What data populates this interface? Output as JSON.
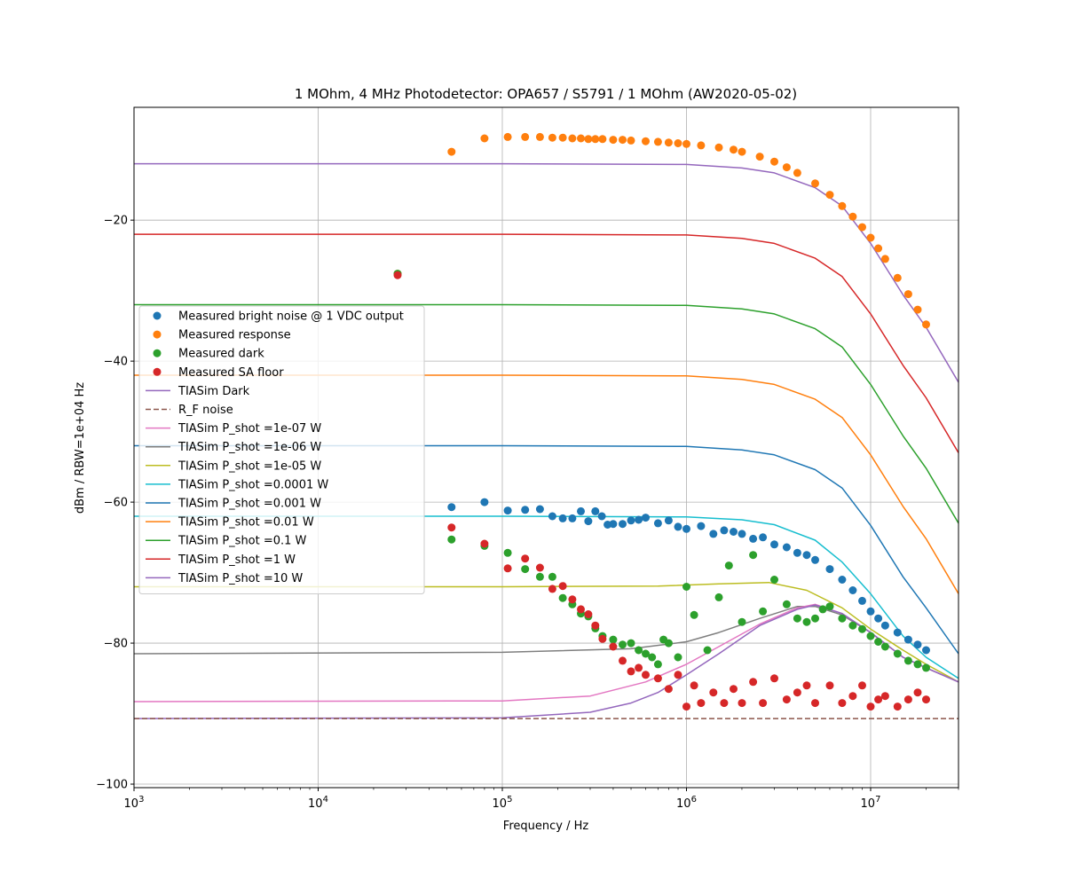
{
  "chart_data": {
    "type": "line",
    "title": "1 MOhm, 4 MHz Photodetector: OPA657 / S5791 / 1 MOhm (AW2020-05-02)",
    "xlabel": "Frequency / Hz",
    "ylabel": "dBm / RBW=1e+04 Hz",
    "x_scale": "log",
    "xlim": [
      1000,
      30000000
    ],
    "ylim": [
      -100.5,
      -4
    ],
    "grid": true,
    "legend_location": "center-left",
    "x_ticks": [
      {
        "value": 1000,
        "base": "10",
        "exp": "3"
      },
      {
        "value": 10000,
        "base": "10",
        "exp": "4"
      },
      {
        "value": 100000,
        "base": "10",
        "exp": "5"
      },
      {
        "value": 1000000,
        "base": "10",
        "exp": "6"
      },
      {
        "value": 10000000,
        "base": "10",
        "exp": "7"
      }
    ],
    "y_ticks": [
      {
        "value": -20,
        "label": "−20"
      },
      {
        "value": -40,
        "label": "−40"
      },
      {
        "value": -60,
        "label": "−60"
      },
      {
        "value": -80,
        "label": "−80"
      },
      {
        "value": -100,
        "label": "−100"
      }
    ],
    "legend": [
      {
        "label": "Measured bright noise @ 1 VDC output",
        "marker": "dot",
        "color": "#1f77b4"
      },
      {
        "label": "Measured response",
        "marker": "dot",
        "color": "#ff7f0e"
      },
      {
        "label": "Measured dark",
        "marker": "dot",
        "color": "#2ca02c"
      },
      {
        "label": "Measured SA floor",
        "marker": "dot",
        "color": "#d62728"
      },
      {
        "label": "TIASim Dark",
        "marker": "line",
        "color": "#9467bd"
      },
      {
        "label": "R_F noise",
        "marker": "dash",
        "color": "#8c564b"
      },
      {
        "label": "TIASim P_shot =1e-07 W",
        "marker": "line",
        "color": "#e377c2"
      },
      {
        "label": "TIASim P_shot =1e-06 W",
        "marker": "line",
        "color": "#7f7f7f"
      },
      {
        "label": "TIASim P_shot =1e-05 W",
        "marker": "line",
        "color": "#bcbd22"
      },
      {
        "label": "TIASim P_shot =0.0001 W",
        "marker": "line",
        "color": "#17becf"
      },
      {
        "label": "TIASim P_shot =0.001 W",
        "marker": "line",
        "color": "#1f77b4"
      },
      {
        "label": "TIASim P_shot =0.01 W",
        "marker": "line",
        "color": "#ff7f0e"
      },
      {
        "label": "TIASim P_shot =0.1 W",
        "marker": "line",
        "color": "#2ca02c"
      },
      {
        "label": "TIASim P_shot =1 W",
        "marker": "line",
        "color": "#d62728"
      },
      {
        "label": "TIASim P_shot =10 W",
        "marker": "line",
        "color": "#9467bd"
      }
    ],
    "line_series": [
      {
        "name": "TIASim P_shot =10 W",
        "color": "#9467bd",
        "dash": false,
        "x": [
          1000,
          100000,
          1000000,
          2000000,
          3000000,
          5000000,
          7000000,
          10000000,
          15000000,
          20000000,
          30000000
        ],
        "y": [
          -12,
          -12,
          -12.1,
          -12.6,
          -13.3,
          -15.4,
          -18,
          -23.3,
          -30.6,
          -35.2,
          -43
        ]
      },
      {
        "name": "TIASim P_shot =1 W",
        "color": "#d62728",
        "dash": false,
        "x": [
          1000,
          100000,
          1000000,
          2000000,
          3000000,
          5000000,
          7000000,
          10000000,
          15000000,
          20000000,
          30000000
        ],
        "y": [
          -22,
          -22,
          -22.1,
          -22.6,
          -23.3,
          -25.4,
          -28,
          -33.3,
          -40.6,
          -45.2,
          -53
        ]
      },
      {
        "name": "TIASim P_shot =0.1 W",
        "color": "#2ca02c",
        "dash": false,
        "x": [
          1000,
          100000,
          1000000,
          2000000,
          3000000,
          5000000,
          7000000,
          10000000,
          15000000,
          20000000,
          30000000
        ],
        "y": [
          -32,
          -32,
          -32.1,
          -32.6,
          -33.3,
          -35.4,
          -38,
          -43.3,
          -50.6,
          -55.2,
          -63
        ]
      },
      {
        "name": "TIASim P_shot =0.01 W",
        "color": "#ff7f0e",
        "dash": false,
        "x": [
          1000,
          100000,
          1000000,
          2000000,
          3000000,
          5000000,
          7000000,
          10000000,
          15000000,
          20000000,
          30000000
        ],
        "y": [
          -42,
          -42,
          -42.1,
          -42.6,
          -43.3,
          -45.4,
          -48,
          -53.3,
          -60.6,
          -65.2,
          -73
        ]
      },
      {
        "name": "TIASim P_shot =0.001 W",
        "color": "#1f77b4",
        "dash": false,
        "x": [
          1000,
          100000,
          1000000,
          2000000,
          3000000,
          5000000,
          7000000,
          10000000,
          15000000,
          20000000,
          30000000
        ],
        "y": [
          -52,
          -52,
          -52.1,
          -52.6,
          -53.3,
          -55.4,
          -58,
          -63.3,
          -70.6,
          -75,
          -81.5
        ]
      },
      {
        "name": "TIASim P_shot =0.0001 W",
        "color": "#17becf",
        "dash": false,
        "x": [
          1000,
          100000,
          1000000,
          2000000,
          3000000,
          5000000,
          7000000,
          10000000,
          15000000,
          20000000,
          30000000
        ],
        "y": [
          -62,
          -62,
          -62.1,
          -62.5,
          -63.2,
          -65.4,
          -68.5,
          -73,
          -79,
          -82,
          -85
        ]
      },
      {
        "name": "TIASim P_shot =1e-05 W",
        "color": "#bcbd22",
        "dash": false,
        "x": [
          1000,
          100000,
          700000,
          1500000,
          2800000,
          4500000,
          7000000,
          10000000,
          15000000,
          20000000,
          30000000
        ],
        "y": [
          -72,
          -72,
          -71.9,
          -71.6,
          -71.4,
          -72.5,
          -75,
          -78,
          -81,
          -83,
          -85.5
        ]
      },
      {
        "name": "TIASim P_shot =1e-06 W",
        "color": "#7f7f7f",
        "dash": false,
        "x": [
          1000,
          100000,
          500000,
          1000000,
          1500000,
          2500000,
          4000000,
          5000000,
          7000000,
          10000000,
          15000000,
          20000000,
          30000000
        ],
        "y": [
          -81.5,
          -81.3,
          -80.8,
          -79.8,
          -78.5,
          -76.5,
          -74.8,
          -74.8,
          -76,
          -78.5,
          -82,
          -83.5,
          -85.5
        ]
      },
      {
        "name": "TIASim P_shot =1e-07 W",
        "color": "#e377c2",
        "dash": false,
        "x": [
          1000,
          100000,
          300000,
          600000,
          1000000,
          1500000,
          2500000,
          4000000,
          5000000,
          7000000,
          10000000,
          15000000,
          20000000,
          30000000
        ],
        "y": [
          -88.3,
          -88.2,
          -87.5,
          -85.5,
          -83,
          -80.5,
          -77.3,
          -75,
          -74.5,
          -75.8,
          -78.5,
          -82,
          -83.5,
          -85.5
        ]
      },
      {
        "name": "TIASim Dark",
        "color": "#9467bd",
        "dash": false,
        "x": [
          1000,
          100000,
          300000,
          500000,
          700000,
          1000000,
          1500000,
          2500000,
          4000000,
          5000000,
          7000000,
          10000000,
          15000000,
          20000000,
          30000000
        ],
        "y": [
          -90.7,
          -90.6,
          -89.8,
          -88.5,
          -87,
          -84.5,
          -81.5,
          -77.5,
          -75.2,
          -74.6,
          -75.8,
          -78.5,
          -82,
          -83.5,
          -85.5
        ]
      },
      {
        "name": "R_F noise",
        "color": "#8c564b",
        "dash": true,
        "x": [
          1000,
          30000000
        ],
        "y": [
          -90.7,
          -90.7
        ]
      }
    ],
    "scatter_series": [
      {
        "name": "Measured bright noise @ 1 VDC output",
        "color": "#1f77b4",
        "x": [
          53000,
          80000,
          107000,
          133000,
          160000,
          187000,
          213000,
          240000,
          267000,
          293000,
          320000,
          347000,
          373000,
          400000,
          450000,
          500000,
          550000,
          600000,
          700000,
          800000,
          900000,
          1000000,
          1200000,
          1400000,
          1600000,
          1800000,
          2000000,
          2300000,
          2600000,
          3000000,
          3500000,
          4000000,
          4500000,
          5000000,
          6000000,
          7000000,
          8000000,
          9000000,
          10000000,
          11000000,
          12000000,
          14000000,
          16000000,
          18000000,
          20000000
        ],
        "y": [
          -60.7,
          -60,
          -61.2,
          -61.1,
          -61,
          -62,
          -62.3,
          -62.3,
          -61.3,
          -62.7,
          -61.3,
          -62,
          -63.2,
          -63.1,
          -63.1,
          -62.6,
          -62.5,
          -62.2,
          -63,
          -62.6,
          -63.5,
          -63.8,
          -63.4,
          -64.5,
          -64,
          -64.2,
          -64.5,
          -65.2,
          -65,
          -66,
          -66.4,
          -67.2,
          -67.5,
          -68.2,
          -69.5,
          -71,
          -72.5,
          -74,
          -75.5,
          -76.5,
          -77.5,
          -78.5,
          -79.5,
          -80.2,
          -81
        ]
      },
      {
        "name": "Measured response",
        "color": "#ff7f0e",
        "x": [
          27000,
          53000,
          80000,
          107000,
          133000,
          160000,
          187000,
          213000,
          240000,
          267000,
          293000,
          320000,
          350000,
          400000,
          450000,
          500000,
          600000,
          700000,
          800000,
          900000,
          1000000,
          1200000,
          1500000,
          1800000,
          2000000,
          2500000,
          3000000,
          3500000,
          4000000,
          5000000,
          6000000,
          7000000,
          8000000,
          9000000,
          10000000,
          11000000,
          12000000,
          14000000,
          16000000,
          18000000,
          20000000
        ],
        "y": [
          -27.6,
          -10.3,
          -8.4,
          -8.2,
          -8.2,
          -8.2,
          -8.3,
          -8.3,
          -8.4,
          -8.4,
          -8.5,
          -8.5,
          -8.5,
          -8.6,
          -8.6,
          -8.7,
          -8.8,
          -8.9,
          -9,
          -9.1,
          -9.2,
          -9.4,
          -9.7,
          -10,
          -10.3,
          -11,
          -11.7,
          -12.5,
          -13.3,
          -14.8,
          -16.4,
          -18,
          -19.5,
          -21,
          -22.5,
          -24,
          -25.5,
          -28.2,
          -30.5,
          -32.7,
          -34.8
        ]
      },
      {
        "name": "Measured dark",
        "color": "#2ca02c",
        "x": [
          27000,
          53000,
          80000,
          107000,
          133000,
          160000,
          187000,
          213000,
          240000,
          267000,
          293000,
          320000,
          350000,
          400000,
          450000,
          500000,
          550000,
          600000,
          650000,
          700000,
          750000,
          800000,
          900000,
          1000000,
          1100000,
          1300000,
          1500000,
          1700000,
          2000000,
          2300000,
          2600000,
          3000000,
          3500000,
          4000000,
          4500000,
          5000000,
          5500000,
          6000000,
          7000000,
          8000000,
          9000000,
          10000000,
          11000000,
          12000000,
          14000000,
          16000000,
          18000000,
          20000000
        ],
        "y": [
          -27.6,
          -65.3,
          -66.2,
          -67.2,
          -69.5,
          -70.6,
          -70.6,
          -73.6,
          -74.5,
          -75.8,
          -76.2,
          -77.9,
          -79,
          -79.5,
          -80.2,
          -80,
          -81,
          -81.5,
          -82,
          -83,
          -79.5,
          -80,
          -82,
          -72,
          -76,
          -81,
          -73.5,
          -69,
          -77,
          -67.5,
          -75.5,
          -71,
          -74.5,
          -76.5,
          -77,
          -76.5,
          -75.2,
          -74.8,
          -76.5,
          -77.5,
          -78,
          -79,
          -79.8,
          -80.5,
          -81.5,
          -82.5,
          -83,
          -83.5
        ]
      },
      {
        "name": "Measured SA floor",
        "color": "#d62728",
        "x": [
          27000,
          53000,
          80000,
          107000,
          133000,
          160000,
          187000,
          213000,
          240000,
          267000,
          293000,
          320000,
          350000,
          400000,
          450000,
          500000,
          550000,
          600000,
          700000,
          800000,
          900000,
          1000000,
          1100000,
          1200000,
          1400000,
          1600000,
          1800000,
          2000000,
          2300000,
          2600000,
          3000000,
          3500000,
          4000000,
          4500000,
          5000000,
          6000000,
          7000000,
          8000000,
          9000000,
          10000000,
          11000000,
          12000000,
          14000000,
          16000000,
          18000000,
          20000000
        ],
        "y": [
          -27.8,
          -63.6,
          -65.9,
          -69.4,
          -68,
          -69.3,
          -72.3,
          -71.9,
          -73.8,
          -75.2,
          -75.9,
          -77.5,
          -79.4,
          -80.5,
          -82.5,
          -84,
          -83.5,
          -84.5,
          -85,
          -86.5,
          -84.5,
          -89,
          -86,
          -88.5,
          -87,
          -88.5,
          -86.5,
          -88.5,
          -85.5,
          -88.5,
          -85,
          -88,
          -87,
          -86,
          -88.5,
          -86,
          -88.5,
          -87.5,
          -86,
          -89,
          -88,
          -87.5,
          -89,
          -88,
          -87,
          -88
        ]
      }
    ]
  }
}
